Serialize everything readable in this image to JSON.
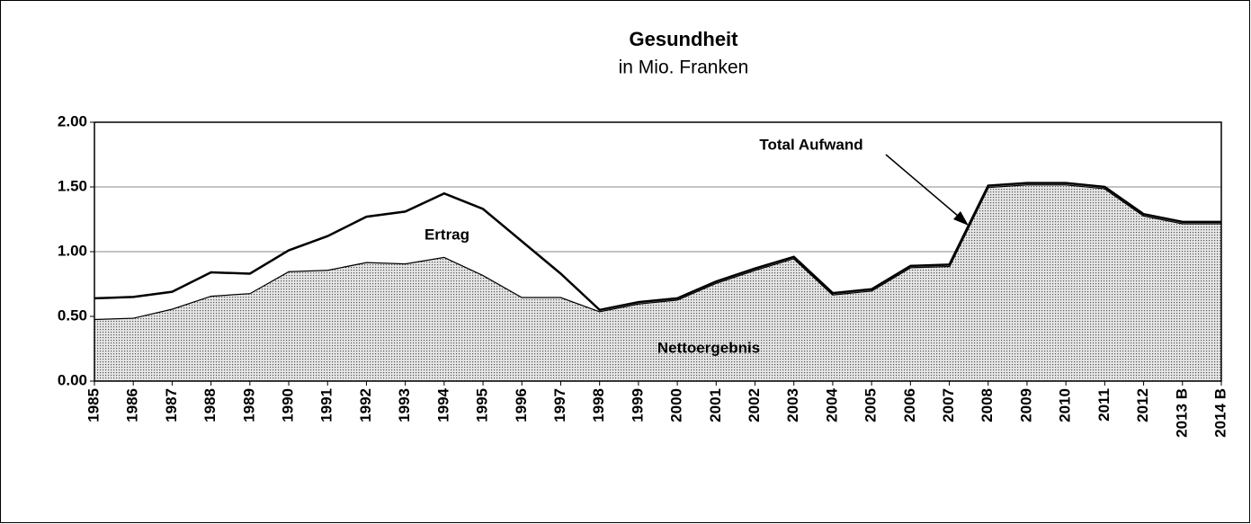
{
  "chart_data": {
    "type": "stacked_area",
    "title": "Gesundheit",
    "subtitle": "in Mio. Franken",
    "categories": [
      "1985",
      "1986",
      "1987",
      "1988",
      "1989",
      "1990",
      "1991",
      "1992",
      "1993",
      "1994",
      "1995",
      "1996",
      "1997",
      "1998",
      "1999",
      "2000",
      "2001",
      "2002",
      "2003",
      "2004",
      "2005",
      "2006",
      "2007",
      "2008",
      "2009",
      "2010",
      "2011",
      "2012",
      "2013 B",
      "2014 B"
    ],
    "series": [
      {
        "name": "Nettoergebnis",
        "color": "#b0b0b0",
        "values": [
          0.48,
          0.49,
          0.56,
          0.66,
          0.68,
          0.85,
          0.86,
          0.92,
          0.91,
          0.96,
          0.82,
          0.65,
          0.65,
          0.54,
          0.6,
          0.63,
          0.76,
          0.86,
          0.95,
          0.67,
          0.7,
          0.88,
          0.89,
          1.5,
          1.52,
          1.52,
          1.49,
          1.28,
          1.22,
          1.22
        ]
      },
      {
        "name": "Ertrag",
        "color": "#ffffff",
        "values": [
          0.16,
          0.16,
          0.13,
          0.18,
          0.15,
          0.16,
          0.26,
          0.35,
          0.4,
          0.49,
          0.51,
          0.43,
          0.18,
          0.01,
          0.01,
          0.01,
          0.01,
          0.01,
          0.01,
          0.01,
          0.01,
          0.01,
          0.01,
          0.01,
          0.01,
          0.01,
          0.01,
          0.01,
          0.01,
          0.01
        ]
      }
    ],
    "annotation": "Total Aufwand",
    "ylim": [
      0,
      2
    ],
    "yticks": [
      {
        "value": 0,
        "label": "0.00"
      },
      {
        "value": 0.5,
        "label": "0.50"
      },
      {
        "value": 1,
        "label": "1.00"
      },
      {
        "value": 1.5,
        "label": "1.50"
      },
      {
        "value": 2,
        "label": "2.00"
      }
    ],
    "grid": true
  }
}
